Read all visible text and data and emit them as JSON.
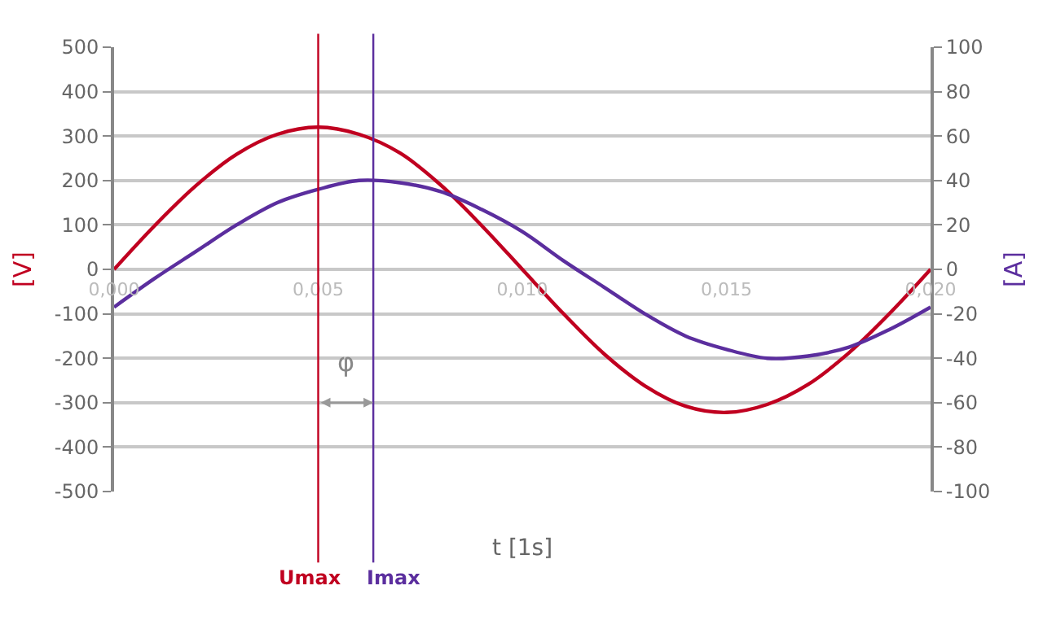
{
  "chart_data": {
    "type": "line",
    "xlabel": "t [1s]",
    "ylabel": "[V]",
    "y2label": "[A]",
    "x": [
      0,
      0.001,
      0.002,
      0.003,
      0.004,
      0.005,
      0.006,
      0.007,
      0.008,
      0.009,
      0.01,
      0.011,
      0.012,
      0.013,
      0.014,
      0.015,
      0.016,
      0.017,
      0.018,
      0.019,
      0.02
    ],
    "series": [
      {
        "color": "#c00020",
        "values": [
          0,
          99,
          188,
          259,
          304,
          320,
          304,
          262,
          190,
          99,
          0,
          -99,
          -190,
          -262,
          -308,
          -322,
          -304,
          -259,
          -188,
          -99,
          0
        ]
      },
      {
        "color": "#5b2e9e",
        "axis": "y2",
        "values": [
          -17,
          -4,
          8,
          20,
          30,
          36,
          40,
          39,
          35,
          27,
          17,
          4,
          -8,
          -20,
          -30,
          -36,
          -40,
          -39,
          -35,
          -27,
          -17
        ]
      }
    ],
    "xlim": [
      0,
      0.02
    ],
    "xticks": [
      {
        "value": 0,
        "label": "0,000"
      },
      {
        "value": 0.005,
        "label": "0,005"
      },
      {
        "value": 0.01,
        "label": "0,010"
      },
      {
        "value": 0.015,
        "label": "0,015"
      },
      {
        "value": 0.02,
        "label": "0,020"
      }
    ],
    "ylim": [
      -500,
      500
    ],
    "yticks": [
      -500,
      -400,
      -300,
      -200,
      -100,
      0,
      100,
      200,
      300,
      400,
      500
    ],
    "y2lim": [
      -100,
      100
    ],
    "y2ticks": [
      -100,
      -80,
      -60,
      -40,
      -20,
      0,
      20,
      40,
      60,
      80,
      100
    ],
    "ref_lines": [
      {
        "axis": "x",
        "value": 0.005,
        "label": "Umax",
        "color": "#c00020"
      },
      {
        "axis": "x",
        "value": 0.00635,
        "label": "Imax",
        "color": "#5b2e9e"
      }
    ],
    "annotations": [
      "φ"
    ],
    "grid": "y",
    "marker": "none",
    "line_style": "solid"
  }
}
